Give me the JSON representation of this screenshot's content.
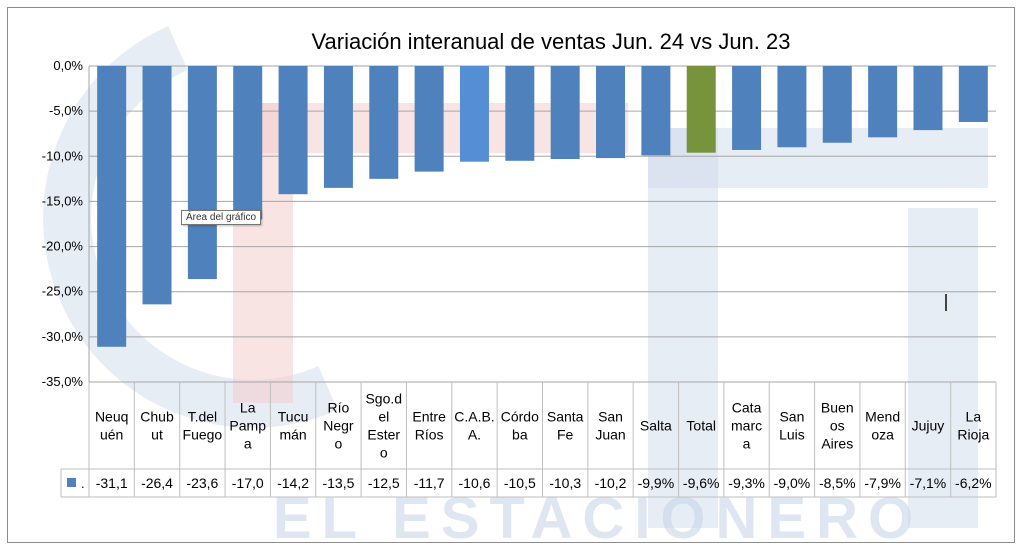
{
  "watermark": {
    "text": "EL ESTACIONERO"
  },
  "tooltip": "Área del gráfico",
  "colors": {
    "bar": "#4F81BD",
    "highlight_caba": "#558ED5",
    "highlight_total": "#77933C",
    "grid": "#A6A6A6",
    "table_border": "#BFBFBF"
  },
  "chart_data": {
    "type": "bar",
    "title": "Variación interanual de ventas Jun. 24 vs Jun. 23",
    "xlabel": "",
    "ylabel": "",
    "ylim": [
      -35,
      0
    ],
    "y_ticks": [
      "0,0%",
      "-5,0%",
      "-10,0%",
      "-15,0%",
      "-20,0%",
      "-25,0%",
      "-30,0%",
      "-35,0%"
    ],
    "grid": true,
    "legend_marker": ".",
    "categories": [
      [
        "Neuq",
        "uén"
      ],
      [
        "Chub",
        "ut"
      ],
      [
        "T.del",
        "Fuego"
      ],
      [
        "La",
        "Pamp",
        "a"
      ],
      [
        "Tucu",
        "mán"
      ],
      [
        "Río",
        "Negr",
        "o"
      ],
      [
        "Sgo.d",
        "el",
        "Ester",
        "o"
      ],
      [
        "Entre",
        "Ríos"
      ],
      [
        "C.A.B.",
        "A."
      ],
      [
        "Córdo",
        "ba"
      ],
      [
        "Santa",
        "Fe"
      ],
      [
        "San",
        "Juan"
      ],
      [
        "Salta"
      ],
      [
        "Total"
      ],
      [
        "Cata",
        "marc",
        "a"
      ],
      [
        "San",
        "Luis"
      ],
      [
        "Buen",
        "os",
        "Aires"
      ],
      [
        "Mend",
        "oza"
      ],
      [
        "Jujuy"
      ],
      [
        "La",
        "Rioja"
      ]
    ],
    "values": [
      -31.1,
      -26.4,
      -23.6,
      -17.0,
      -14.2,
      -13.5,
      -12.5,
      -11.7,
      -10.6,
      -10.5,
      -10.3,
      -10.2,
      -9.9,
      -9.6,
      -9.3,
      -9.0,
      -8.5,
      -7.9,
      -7.1,
      -6.2
    ],
    "value_labels": [
      "-31,1",
      "-26,4",
      "-23,6",
      "-17,0",
      "-14,2",
      "-13,5",
      "-12,5",
      "-11,7",
      "-10,6",
      "-10,5",
      "-10,3",
      "-10,2",
      "-9,9%",
      "-9,6%",
      "-9,3%",
      "-9,0%",
      "-8,5%",
      "-7,9%",
      "-7,1%",
      "-6,2%"
    ],
    "highlights": {
      "8": "highlight_caba",
      "13": "highlight_total"
    }
  }
}
